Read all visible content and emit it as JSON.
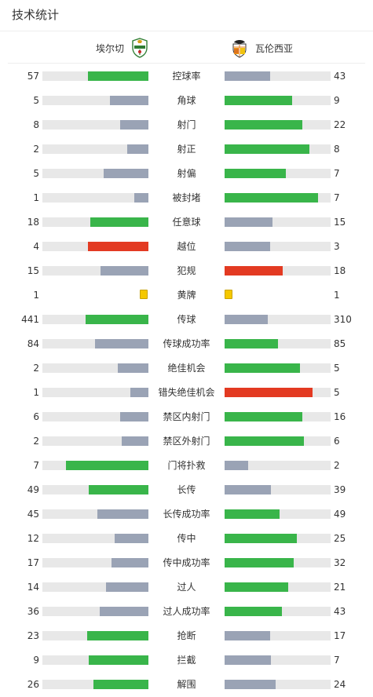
{
  "header": {
    "title": "技术统计"
  },
  "teams": {
    "home": {
      "name": "埃尔切",
      "logo_icon": "elche-crest-icon"
    },
    "away": {
      "name": "瓦伦西亚",
      "logo_icon": "valencia-bat-crest-icon"
    }
  },
  "colors": {
    "win": "#39b54a",
    "lose": "#9aa3b5",
    "bad": "#e33a22",
    "track": "#e8e8e8",
    "yellow": "#f5c800"
  },
  "stats": [
    {
      "label": "控球率",
      "home": "57",
      "away": "43",
      "home_fill": 0.57,
      "away_fill": 0.43,
      "home_color": "win",
      "away_color": "lose"
    },
    {
      "label": "角球",
      "home": "5",
      "away": "9",
      "home_fill": 0.36,
      "away_fill": 0.64,
      "home_color": "lose",
      "away_color": "win"
    },
    {
      "label": "射门",
      "home": "8",
      "away": "22",
      "home_fill": 0.27,
      "away_fill": 0.73,
      "home_color": "lose",
      "away_color": "win"
    },
    {
      "label": "射正",
      "home": "2",
      "away": "8",
      "home_fill": 0.2,
      "away_fill": 0.8,
      "home_color": "lose",
      "away_color": "win"
    },
    {
      "label": "射偏",
      "home": "5",
      "away": "7",
      "home_fill": 0.42,
      "away_fill": 0.58,
      "home_color": "lose",
      "away_color": "win"
    },
    {
      "label": "被封堵",
      "home": "1",
      "away": "7",
      "home_fill": 0.13,
      "away_fill": 0.88,
      "home_color": "lose",
      "away_color": "win"
    },
    {
      "label": "任意球",
      "home": "18",
      "away": "15",
      "home_fill": 0.55,
      "away_fill": 0.45,
      "home_color": "win",
      "away_color": "lose"
    },
    {
      "label": "越位",
      "home": "4",
      "away": "3",
      "home_fill": 0.57,
      "away_fill": 0.43,
      "home_color": "bad",
      "away_color": "lose"
    },
    {
      "label": "犯规",
      "home": "15",
      "away": "18",
      "home_fill": 0.45,
      "away_fill": 0.55,
      "home_color": "lose",
      "away_color": "bad"
    },
    {
      "label": "黄牌",
      "home": "1",
      "away": "1",
      "type": "card"
    },
    {
      "label": "传球",
      "home": "441",
      "away": "310",
      "home_fill": 0.59,
      "away_fill": 0.41,
      "home_color": "win",
      "away_color": "lose"
    },
    {
      "label": "传球成功率",
      "home": "84",
      "away": "85",
      "home_fill": 0.5,
      "away_fill": 0.5,
      "home_color": "lose",
      "away_color": "win"
    },
    {
      "label": "绝佳机会",
      "home": "2",
      "away": "5",
      "home_fill": 0.29,
      "away_fill": 0.71,
      "home_color": "lose",
      "away_color": "win"
    },
    {
      "label": "错失绝佳机会",
      "home": "1",
      "away": "5",
      "home_fill": 0.17,
      "away_fill": 0.83,
      "home_color": "lose",
      "away_color": "bad"
    },
    {
      "label": "禁区内射门",
      "home": "6",
      "away": "16",
      "home_fill": 0.27,
      "away_fill": 0.73,
      "home_color": "lose",
      "away_color": "win"
    },
    {
      "label": "禁区外射门",
      "home": "2",
      "away": "6",
      "home_fill": 0.25,
      "away_fill": 0.75,
      "home_color": "lose",
      "away_color": "win"
    },
    {
      "label": "门将扑救",
      "home": "7",
      "away": "2",
      "home_fill": 0.78,
      "away_fill": 0.22,
      "home_color": "win",
      "away_color": "lose"
    },
    {
      "label": "长传",
      "home": "49",
      "away": "39",
      "home_fill": 0.56,
      "away_fill": 0.44,
      "home_color": "win",
      "away_color": "lose"
    },
    {
      "label": "长传成功率",
      "home": "45",
      "away": "49",
      "home_fill": 0.48,
      "away_fill": 0.52,
      "home_color": "lose",
      "away_color": "win"
    },
    {
      "label": "传中",
      "home": "12",
      "away": "25",
      "home_fill": 0.32,
      "away_fill": 0.68,
      "home_color": "lose",
      "away_color": "win"
    },
    {
      "label": "传中成功率",
      "home": "17",
      "away": "32",
      "home_fill": 0.35,
      "away_fill": 0.65,
      "home_color": "lose",
      "away_color": "win"
    },
    {
      "label": "过人",
      "home": "14",
      "away": "21",
      "home_fill": 0.4,
      "away_fill": 0.6,
      "home_color": "lose",
      "away_color": "win"
    },
    {
      "label": "过人成功率",
      "home": "36",
      "away": "43",
      "home_fill": 0.46,
      "away_fill": 0.54,
      "home_color": "lose",
      "away_color": "win"
    },
    {
      "label": "抢断",
      "home": "23",
      "away": "17",
      "home_fill": 0.58,
      "away_fill": 0.43,
      "home_color": "win",
      "away_color": "lose"
    },
    {
      "label": "拦截",
      "home": "9",
      "away": "7",
      "home_fill": 0.56,
      "away_fill": 0.44,
      "home_color": "win",
      "away_color": "lose"
    },
    {
      "label": "解围",
      "home": "26",
      "away": "24",
      "home_fill": 0.52,
      "away_fill": 0.48,
      "home_color": "win",
      "away_color": "lose"
    }
  ]
}
